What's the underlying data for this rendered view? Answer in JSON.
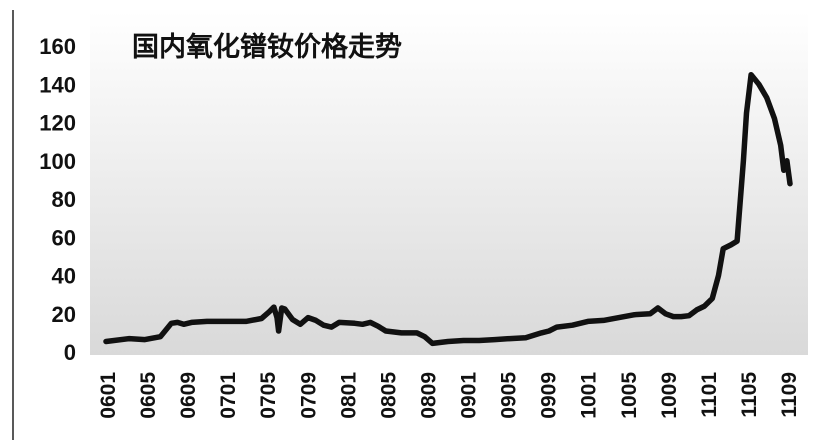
{
  "chart_data": {
    "type": "line",
    "title": "国内氧化镨钕价格走势",
    "xlabel": "",
    "ylabel": "",
    "ylim": [
      0,
      160
    ],
    "grid": false,
    "legend": "none",
    "y_ticks": [
      "0",
      "20",
      "40",
      "60",
      "80",
      "100",
      "120",
      "140",
      "160"
    ],
    "x_ticks": [
      "0601",
      "0605",
      "0609",
      "0701",
      "0705",
      "0709",
      "0801",
      "0805",
      "0809",
      "0901",
      "0905",
      "0909",
      "1001",
      "1005",
      "1009",
      "1101",
      "1105",
      "1109"
    ],
    "colors": {
      "line": "#111111",
      "plot_background_top": "#ffffff",
      "plot_background_bottom": "#d9d9d9"
    },
    "series": [
      {
        "values": [
          [
            0,
            5.5
          ],
          [
            1.5,
            7
          ],
          [
            2.5,
            6.5
          ],
          [
            3.5,
            8
          ],
          [
            4.2,
            15
          ],
          [
            4.6,
            15.5
          ],
          [
            5.0,
            14.5
          ],
          [
            5.5,
            15.5
          ],
          [
            6.5,
            16
          ],
          [
            8.0,
            16
          ],
          [
            9.0,
            16
          ],
          [
            10.0,
            17.5
          ],
          [
            10.5,
            21
          ],
          [
            10.8,
            23.5
          ],
          [
            11.0,
            18
          ],
          [
            11.1,
            11
          ],
          [
            11.3,
            23
          ],
          [
            11.5,
            22.5
          ],
          [
            12.0,
            17
          ],
          [
            12.5,
            14.5
          ],
          [
            13.0,
            18
          ],
          [
            13.5,
            16.5
          ],
          [
            14.0,
            14
          ],
          [
            14.5,
            13
          ],
          [
            15.0,
            15.5
          ],
          [
            16.0,
            15
          ],
          [
            16.5,
            14.5
          ],
          [
            17.0,
            15.5
          ],
          [
            17.5,
            13.5
          ],
          [
            18.0,
            11
          ],
          [
            19.0,
            10
          ],
          [
            20.0,
            10
          ],
          [
            20.5,
            8
          ],
          [
            21.0,
            4.5
          ],
          [
            22.0,
            5.5
          ],
          [
            23.0,
            6
          ],
          [
            24.0,
            6
          ],
          [
            25.0,
            6.5
          ],
          [
            26.0,
            7
          ],
          [
            27.0,
            7.5
          ],
          [
            28.0,
            10
          ],
          [
            28.5,
            11
          ],
          [
            29.0,
            13
          ],
          [
            30.0,
            14
          ],
          [
            31.0,
            16
          ],
          [
            32.0,
            16.5
          ],
          [
            33.0,
            18
          ],
          [
            34.0,
            19.5
          ],
          [
            35.0,
            20
          ],
          [
            35.5,
            23
          ],
          [
            36.0,
            20
          ],
          [
            36.5,
            18.5
          ],
          [
            37.0,
            18.5
          ],
          [
            37.5,
            19
          ],
          [
            38.0,
            22
          ],
          [
            38.5,
            24
          ],
          [
            39.0,
            28
          ],
          [
            39.4,
            40
          ],
          [
            39.7,
            54
          ],
          [
            40.2,
            56
          ],
          [
            40.6,
            58
          ],
          [
            41.0,
            100
          ],
          [
            41.2,
            125
          ],
          [
            41.5,
            145
          ],
          [
            42.0,
            140
          ],
          [
            42.5,
            133
          ],
          [
            43.0,
            122
          ],
          [
            43.4,
            108
          ],
          [
            43.6,
            95
          ],
          [
            43.8,
            100
          ],
          [
            44.0,
            88
          ]
        ]
      }
    ]
  }
}
